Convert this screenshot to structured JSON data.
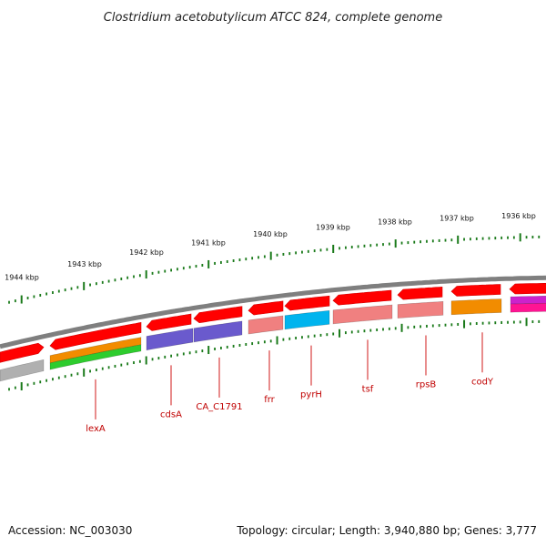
{
  "title": "Clostridium acetobutylicum ATCC 824, complete genome",
  "footer": {
    "accession": "Accession: NC_003030",
    "summary": "Topology: circular; Length: 3,940,880 bp; Genes: 3,777"
  },
  "kbp_labels": [
    "1944 kbp",
    "1943 kbp",
    "1942 kbp",
    "1941 kbp",
    "1940 kbp",
    "1939 kbp",
    "1938 kbp",
    "1937 kbp",
    "1936 kbp"
  ],
  "gene_labels": [
    "lexA",
    "cdsA",
    "CA_C1791",
    "frr",
    "pyrH",
    "tsf",
    "rpsB",
    "codY"
  ],
  "colors": {
    "forward_gene": "#ff0000",
    "tick": "#1a7a1a",
    "label": "#cc0000",
    "backbone": "#777777",
    "grey": "#b0b0b0",
    "orange": "#f28c00",
    "green": "#2ecc2e",
    "purple": "#6a5acd",
    "salmon": "#f08080",
    "cyan": "#00b4ee",
    "pink": "#ff1493",
    "magenta": "#cc22cc"
  }
}
